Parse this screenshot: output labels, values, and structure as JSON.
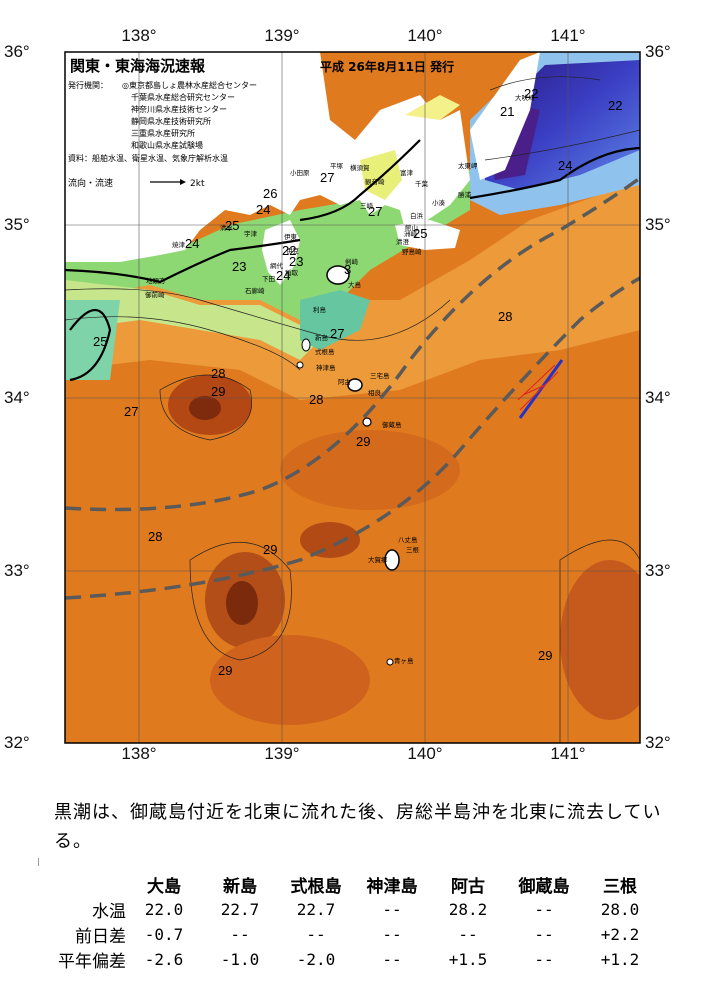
{
  "header": {
    "title": "関東・東海海況速報",
    "issue_date": "平成 26年8月11日 発行",
    "agencies_label": "発行機関：",
    "agencies": [
      "◎東京都島しょ農林水産総合センター",
      "千葉県水産総合研究センター",
      "神奈川県水産技術センター",
      "静岡県水産技術研究所",
      "三重県水産研究所",
      "和歌山県水産試験場"
    ],
    "sources": "資料：船舶水温、衛星水温、気象庁解析水温",
    "current_legend_label": "流向・流速",
    "current_legend_unit": "2kt"
  },
  "axes": {
    "lon": [
      "138°",
      "139°",
      "140°",
      "141°"
    ],
    "lat": [
      "36°",
      "35°",
      "34°",
      "33°",
      "32°"
    ]
  },
  "place_labels": [
    "大吠埼",
    "太東岬",
    "勝浦",
    "小湊",
    "白浜",
    "館山",
    "野島崎",
    "千葉",
    "清澄",
    "洲崎",
    "剣崎",
    "三崎",
    "横須賀",
    "平塚",
    "小田原",
    "観音崎",
    "富津",
    "伊東",
    "網代",
    "稲取",
    "下田",
    "石廊崎",
    "御前崎",
    "焼津",
    "宇津",
    "清水",
    "伊豆",
    "大島",
    "利島",
    "新島",
    "式根島",
    "神津島",
    "三宅島",
    "阿古",
    "御蔵島",
    "八丈島",
    "大賀郷",
    "三根",
    "青ヶ島",
    "地頭方",
    "相良"
  ],
  "sst_labels": [
    "22",
    "22",
    "21",
    "24",
    "26",
    "24",
    "25",
    "27",
    "27",
    "25",
    "24",
    "23",
    "22",
    "23",
    "24",
    "25",
    "27",
    "28",
    "29",
    "27",
    "28",
    "29",
    "28",
    "29",
    "28",
    "29",
    "29",
    "3"
  ],
  "colors": {
    "kuroshio_axis": "#5a5a5a",
    "land": "#ffffff",
    "legend_arrow": "#000000"
  },
  "summary": "黒潮は、御蔵島付近を北東に流れた後、房総半島沖を北東に流去している。",
  "table": {
    "headers": [
      "大島",
      "新島",
      "式根島",
      "神津島",
      "阿古",
      "御蔵島",
      "三根"
    ],
    "rows": [
      {
        "label": "水温",
        "values": [
          "22.0",
          "22.7",
          "22.7",
          "--",
          "28.2",
          "--",
          "28.0"
        ]
      },
      {
        "label": "前日差",
        "values": [
          "-0.7",
          "--",
          "--",
          "--",
          "--",
          "--",
          "+2.2"
        ]
      },
      {
        "label": "平年偏差",
        "values": [
          "-2.6",
          "-1.0",
          "-2.0",
          "--",
          "+1.5",
          "--",
          "+1.2"
        ]
      }
    ]
  }
}
